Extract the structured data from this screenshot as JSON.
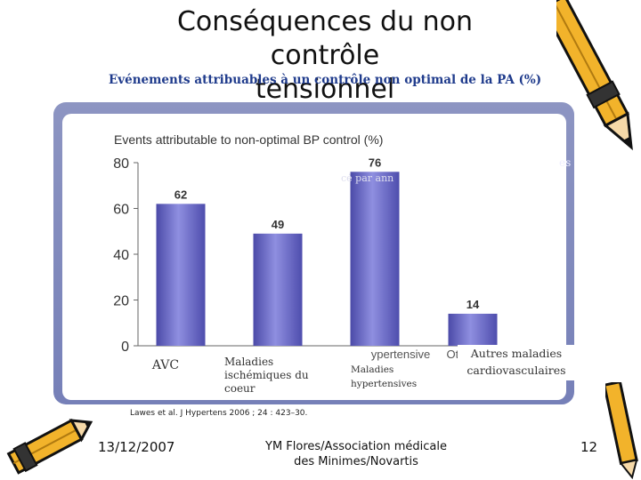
{
  "slide": {
    "title_line1": "Conséquences du non contrôle",
    "title_line2": "tensionnel",
    "subtitle": "Evénements attribuables à un contrôle non optimal de la PA (%)",
    "overlay_text_right": "es",
    "overlay_text_mid": "cé par ann",
    "date": "13/12/2007",
    "author_line1": "YM Flores/Association médicale",
    "author_line2": "des Minimes/Novartis",
    "page_number": "12",
    "citation": "Lawes et al. J Hypertens 2006 ; 24 : 423–30."
  },
  "chart_data": {
    "type": "bar",
    "title": "Events attributable to non-optimal BP control (%)",
    "categories": [
      "AVC",
      "Maladies ischémiques du coeur",
      "Maladies hypertensives",
      "Autres maladies cardiovasculaires"
    ],
    "original_categories": [
      "",
      "",
      "ypertensive",
      "Oth"
    ],
    "values": [
      62,
      49,
      76,
      14
    ],
    "value_labels": [
      "62",
      "49",
      "76",
      "14"
    ],
    "yticks": [
      "0",
      "20",
      "40",
      "60",
      "80"
    ],
    "ylim": [
      0,
      80
    ],
    "xlabel": "",
    "ylabel": "",
    "bar_color": "#6e6fc4",
    "grid": false,
    "legend": "none"
  }
}
